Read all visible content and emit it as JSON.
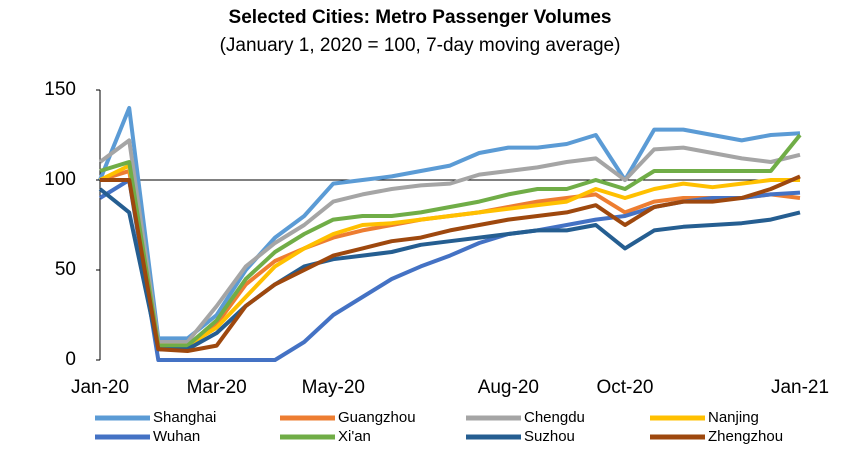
{
  "chart_data": {
    "type": "line",
    "title": "Selected Cities: Metro Passenger Volumes",
    "subtitle": "(January 1, 2020 = 100, 7-day moving average)",
    "categories": [
      "Jan-20",
      null,
      null,
      null,
      "Mar-20",
      null,
      null,
      null,
      "May-20",
      null,
      null,
      null,
      null,
      null,
      "Aug-20",
      null,
      null,
      null,
      "Oct-20",
      null,
      null,
      null,
      null,
      null,
      "Jan-21"
    ],
    "ylim": [
      0,
      150
    ],
    "yticks": [
      0,
      50,
      100,
      150
    ],
    "reference_line": 100,
    "series": [
      {
        "name": "Shanghai",
        "color": "#5b9bd5",
        "values": [
          100,
          140,
          12,
          12,
          25,
          50,
          68,
          80,
          98,
          100,
          102,
          105,
          108,
          115,
          118,
          118,
          120,
          125,
          100,
          128,
          128,
          125,
          122,
          125,
          126
        ]
      },
      {
        "name": "Guangzhou",
        "color": "#ed7d31",
        "values": [
          100,
          105,
          8,
          8,
          20,
          42,
          55,
          62,
          68,
          72,
          75,
          78,
          80,
          82,
          85,
          88,
          90,
          92,
          82,
          88,
          90,
          90,
          90,
          92,
          90
        ]
      },
      {
        "name": "Chengdu",
        "color": "#a5a5a5",
        "values": [
          110,
          122,
          10,
          10,
          30,
          52,
          65,
          75,
          88,
          92,
          95,
          97,
          98,
          103,
          105,
          107,
          110,
          112,
          100,
          117,
          118,
          115,
          112,
          110,
          114
        ]
      },
      {
        "name": "Nanjing",
        "color": "#ffc000",
        "values": [
          100,
          108,
          8,
          8,
          18,
          35,
          52,
          62,
          70,
          75,
          76,
          78,
          80,
          82,
          84,
          86,
          88,
          95,
          90,
          95,
          98,
          96,
          98,
          100,
          100
        ]
      },
      {
        "name": "Wuhan",
        "color": "#4472c4",
        "values": [
          90,
          100,
          0,
          0,
          0,
          0,
          0,
          10,
          25,
          35,
          45,
          52,
          58,
          65,
          70,
          72,
          75,
          78,
          80,
          85,
          88,
          90,
          90,
          92,
          93
        ]
      },
      {
        "name": "Xi'an",
        "color": "#70ad47",
        "values": [
          105,
          110,
          8,
          8,
          22,
          45,
          60,
          70,
          78,
          80,
          80,
          82,
          85,
          88,
          92,
          95,
          95,
          100,
          95,
          105,
          105,
          105,
          105,
          105,
          125
        ]
      },
      {
        "name": "Suzhou",
        "color": "#255e91",
        "values": [
          95,
          82,
          6,
          6,
          15,
          30,
          42,
          52,
          56,
          58,
          60,
          64,
          66,
          68,
          70,
          72,
          72,
          75,
          62,
          72,
          74,
          75,
          76,
          78,
          82
        ]
      },
      {
        "name": "Zhengzhou",
        "color": "#9e480e",
        "values": [
          100,
          100,
          6,
          5,
          8,
          30,
          42,
          50,
          58,
          62,
          66,
          68,
          72,
          75,
          78,
          80,
          82,
          86,
          75,
          85,
          88,
          88,
          90,
          95,
          102
        ]
      }
    ]
  }
}
